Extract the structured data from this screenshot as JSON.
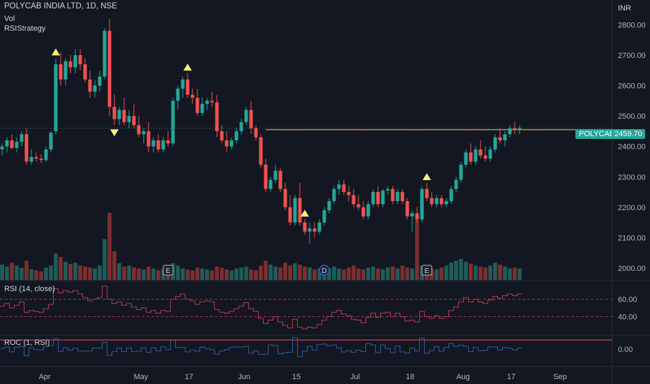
{
  "header": {
    "title": "POLYCAB INDIA LTD, 1D, NSE",
    "vol_label": "Vol",
    "strategy_label": "RSIStrategy",
    "currency": "INR"
  },
  "price_tag": {
    "symbol": "POLYCAB",
    "value": "2459.70"
  },
  "rsi_panel": {
    "label": "RSI (14, close)"
  },
  "roc_panel": {
    "label": "ROC (1, RSI)"
  },
  "colors": {
    "up": "#26a69a",
    "down": "#ef5350",
    "up_volume": "#1f5d5a",
    "down_volume": "#7d2f2f",
    "rsi_line": "#b83a4b",
    "roc_line": "#2962ff",
    "level_line": "#f59e0b",
    "signal_marker": "#fff176"
  },
  "chart_data": {
    "type": "candlestick",
    "title": "POLYCAB INDIA LTD, 1D, NSE",
    "currency": "INR",
    "x_ticks": [
      "Apr",
      "May",
      "17",
      "Jun",
      "15",
      "Jul",
      "18",
      "Aug",
      "17",
      "Sep"
    ],
    "y_ticks": [
      "2800.00",
      "2700.00",
      "2600.00",
      "2500.00",
      "2400.00",
      "2300.00",
      "2200.00",
      "2100.00",
      "2000.00"
    ],
    "ylim": [
      1970,
      2870
    ],
    "last_price": 2459.7,
    "level_line_value": 2455,
    "ohlc": [
      {
        "o": 2390,
        "h": 2410,
        "l": 2370,
        "c": 2400
      },
      {
        "o": 2400,
        "h": 2430,
        "l": 2380,
        "c": 2420
      },
      {
        "o": 2420,
        "h": 2440,
        "l": 2390,
        "c": 2395
      },
      {
        "o": 2395,
        "h": 2430,
        "l": 2380,
        "c": 2415
      },
      {
        "o": 2415,
        "h": 2450,
        "l": 2400,
        "c": 2440
      },
      {
        "o": 2440,
        "h": 2460,
        "l": 2340,
        "c": 2350
      },
      {
        "o": 2350,
        "h": 2390,
        "l": 2340,
        "c": 2365
      },
      {
        "o": 2365,
        "h": 2380,
        "l": 2350,
        "c": 2360
      },
      {
        "o": 2360,
        "h": 2375,
        "l": 2345,
        "c": 2355
      },
      {
        "o": 2355,
        "h": 2400,
        "l": 2350,
        "c": 2390
      },
      {
        "o": 2390,
        "h": 2450,
        "l": 2380,
        "c": 2445
      },
      {
        "o": 2450,
        "h": 2690,
        "l": 2440,
        "c": 2670
      },
      {
        "o": 2670,
        "h": 2710,
        "l": 2600,
        "c": 2620
      },
      {
        "o": 2620,
        "h": 2690,
        "l": 2600,
        "c": 2680
      },
      {
        "o": 2680,
        "h": 2700,
        "l": 2640,
        "c": 2660
      },
      {
        "o": 2660,
        "h": 2720,
        "l": 2640,
        "c": 2700
      },
      {
        "o": 2700,
        "h": 2720,
        "l": 2650,
        "c": 2670
      },
      {
        "o": 2670,
        "h": 2690,
        "l": 2610,
        "c": 2620
      },
      {
        "o": 2620,
        "h": 2650,
        "l": 2560,
        "c": 2580
      },
      {
        "o": 2580,
        "h": 2620,
        "l": 2560,
        "c": 2600
      },
      {
        "o": 2600,
        "h": 2650,
        "l": 2580,
        "c": 2630
      },
      {
        "o": 2630,
        "h": 2790,
        "l": 2620,
        "c": 2780
      },
      {
        "o": 2780,
        "h": 2820,
        "l": 2500,
        "c": 2530
      },
      {
        "o": 2530,
        "h": 2570,
        "l": 2470,
        "c": 2490
      },
      {
        "o": 2490,
        "h": 2530,
        "l": 2470,
        "c": 2520
      },
      {
        "o": 2520,
        "h": 2560,
        "l": 2470,
        "c": 2480
      },
      {
        "o": 2480,
        "h": 2520,
        "l": 2460,
        "c": 2500
      },
      {
        "o": 2500,
        "h": 2540,
        "l": 2460,
        "c": 2470
      },
      {
        "o": 2470,
        "h": 2500,
        "l": 2430,
        "c": 2440
      },
      {
        "o": 2440,
        "h": 2460,
        "l": 2410,
        "c": 2450
      },
      {
        "o": 2450,
        "h": 2480,
        "l": 2380,
        "c": 2400
      },
      {
        "o": 2400,
        "h": 2430,
        "l": 2380,
        "c": 2420
      },
      {
        "o": 2420,
        "h": 2440,
        "l": 2380,
        "c": 2390
      },
      {
        "o": 2390,
        "h": 2430,
        "l": 2380,
        "c": 2420
      },
      {
        "o": 2420,
        "h": 2450,
        "l": 2400,
        "c": 2410
      },
      {
        "o": 2410,
        "h": 2560,
        "l": 2400,
        "c": 2550
      },
      {
        "o": 2550,
        "h": 2600,
        "l": 2520,
        "c": 2590
      },
      {
        "o": 2590,
        "h": 2630,
        "l": 2560,
        "c": 2620
      },
      {
        "o": 2620,
        "h": 2640,
        "l": 2560,
        "c": 2570
      },
      {
        "o": 2570,
        "h": 2590,
        "l": 2540,
        "c": 2560
      },
      {
        "o": 2560,
        "h": 2590,
        "l": 2500,
        "c": 2510
      },
      {
        "o": 2510,
        "h": 2560,
        "l": 2500,
        "c": 2540
      },
      {
        "o": 2540,
        "h": 2560,
        "l": 2520,
        "c": 2550
      },
      {
        "o": 2550,
        "h": 2580,
        "l": 2530,
        "c": 2545
      },
      {
        "o": 2545,
        "h": 2570,
        "l": 2430,
        "c": 2450
      },
      {
        "o": 2450,
        "h": 2470,
        "l": 2410,
        "c": 2420
      },
      {
        "o": 2420,
        "h": 2450,
        "l": 2380,
        "c": 2400
      },
      {
        "o": 2400,
        "h": 2430,
        "l": 2390,
        "c": 2420
      },
      {
        "o": 2420,
        "h": 2460,
        "l": 2410,
        "c": 2450
      },
      {
        "o": 2450,
        "h": 2490,
        "l": 2440,
        "c": 2480
      },
      {
        "o": 2480,
        "h": 2530,
        "l": 2470,
        "c": 2520
      },
      {
        "o": 2520,
        "h": 2550,
        "l": 2440,
        "c": 2460
      },
      {
        "o": 2460,
        "h": 2470,
        "l": 2420,
        "c": 2430
      },
      {
        "o": 2430,
        "h": 2440,
        "l": 2330,
        "c": 2340
      },
      {
        "o": 2340,
        "h": 2360,
        "l": 2250,
        "c": 2260
      },
      {
        "o": 2260,
        "h": 2300,
        "l": 2250,
        "c": 2290
      },
      {
        "o": 2290,
        "h": 2340,
        "l": 2280,
        "c": 2320
      },
      {
        "o": 2320,
        "h": 2330,
        "l": 2250,
        "c": 2260
      },
      {
        "o": 2260,
        "h": 2280,
        "l": 2190,
        "c": 2200
      },
      {
        "o": 2200,
        "h": 2240,
        "l": 2140,
        "c": 2150
      },
      {
        "o": 2150,
        "h": 2240,
        "l": 2140,
        "c": 2230
      },
      {
        "o": 2230,
        "h": 2280,
        "l": 2140,
        "c": 2150
      },
      {
        "o": 2150,
        "h": 2160,
        "l": 2110,
        "c": 2120
      },
      {
        "o": 2120,
        "h": 2150,
        "l": 2080,
        "c": 2130
      },
      {
        "o": 2130,
        "h": 2150,
        "l": 2100,
        "c": 2120
      },
      {
        "o": 2120,
        "h": 2160,
        "l": 2110,
        "c": 2150
      },
      {
        "o": 2150,
        "h": 2200,
        "l": 2140,
        "c": 2190
      },
      {
        "o": 2190,
        "h": 2230,
        "l": 2180,
        "c": 2220
      },
      {
        "o": 2220,
        "h": 2270,
        "l": 2210,
        "c": 2260
      },
      {
        "o": 2260,
        "h": 2290,
        "l": 2240,
        "c": 2275
      },
      {
        "o": 2275,
        "h": 2290,
        "l": 2240,
        "c": 2250
      },
      {
        "o": 2250,
        "h": 2270,
        "l": 2220,
        "c": 2240
      },
      {
        "o": 2240,
        "h": 2260,
        "l": 2200,
        "c": 2210
      },
      {
        "o": 2210,
        "h": 2240,
        "l": 2190,
        "c": 2200
      },
      {
        "o": 2200,
        "h": 2220,
        "l": 2160,
        "c": 2170
      },
      {
        "o": 2170,
        "h": 2220,
        "l": 2160,
        "c": 2210
      },
      {
        "o": 2210,
        "h": 2260,
        "l": 2200,
        "c": 2250
      },
      {
        "o": 2250,
        "h": 2270,
        "l": 2200,
        "c": 2210
      },
      {
        "o": 2210,
        "h": 2260,
        "l": 2200,
        "c": 2255
      },
      {
        "o": 2255,
        "h": 2270,
        "l": 2240,
        "c": 2260
      },
      {
        "o": 2260,
        "h": 2270,
        "l": 2210,
        "c": 2220
      },
      {
        "o": 2220,
        "h": 2260,
        "l": 2210,
        "c": 2250
      },
      {
        "o": 2250,
        "h": 2260,
        "l": 2210,
        "c": 2220
      },
      {
        "o": 2220,
        "h": 2230,
        "l": 2160,
        "c": 2170
      },
      {
        "o": 2170,
        "h": 2190,
        "l": 2120,
        "c": 2180
      },
      {
        "o": 2180,
        "h": 2200,
        "l": 2150,
        "c": 2160
      },
      {
        "o": 2160,
        "h": 2270,
        "l": 2150,
        "c": 2260
      },
      {
        "o": 2260,
        "h": 2280,
        "l": 2220,
        "c": 2230
      },
      {
        "o": 2230,
        "h": 2250,
        "l": 2200,
        "c": 2210
      },
      {
        "o": 2210,
        "h": 2240,
        "l": 2200,
        "c": 2230
      },
      {
        "o": 2230,
        "h": 2240,
        "l": 2200,
        "c": 2210
      },
      {
        "o": 2210,
        "h": 2230,
        "l": 2200,
        "c": 2220
      },
      {
        "o": 2220,
        "h": 2270,
        "l": 2210,
        "c": 2260
      },
      {
        "o": 2260,
        "h": 2300,
        "l": 2250,
        "c": 2290
      },
      {
        "o": 2290,
        "h": 2350,
        "l": 2280,
        "c": 2340
      },
      {
        "o": 2340,
        "h": 2390,
        "l": 2330,
        "c": 2380
      },
      {
        "o": 2380,
        "h": 2410,
        "l": 2340,
        "c": 2350
      },
      {
        "o": 2350,
        "h": 2400,
        "l": 2340,
        "c": 2390
      },
      {
        "o": 2390,
        "h": 2420,
        "l": 2360,
        "c": 2370
      },
      {
        "o": 2370,
        "h": 2400,
        "l": 2350,
        "c": 2360
      },
      {
        "o": 2360,
        "h": 2400,
        "l": 2350,
        "c": 2390
      },
      {
        "o": 2390,
        "h": 2440,
        "l": 2380,
        "c": 2430
      },
      {
        "o": 2430,
        "h": 2460,
        "l": 2410,
        "c": 2420
      },
      {
        "o": 2420,
        "h": 2450,
        "l": 2400,
        "c": 2440
      },
      {
        "o": 2440,
        "h": 2470,
        "l": 2430,
        "c": 2460
      },
      {
        "o": 2460,
        "h": 2480,
        "l": 2440,
        "c": 2455
      },
      {
        "o": 2455,
        "h": 2470,
        "l": 2440,
        "c": 2460
      }
    ],
    "volume": [
      32,
      28,
      36,
      30,
      25,
      40,
      22,
      20,
      18,
      26,
      30,
      55,
      48,
      38,
      33,
      36,
      30,
      28,
      26,
      24,
      30,
      85,
      140,
      60,
      35,
      28,
      30,
      26,
      24,
      22,
      28,
      24,
      20,
      22,
      26,
      35,
      30,
      24,
      22,
      20,
      26,
      24,
      22,
      20,
      28,
      25,
      22,
      20,
      24,
      26,
      28,
      22,
      20,
      30,
      40,
      32,
      28,
      26,
      36,
      30,
      35,
      32,
      28,
      26,
      22,
      24,
      26,
      24,
      28,
      24,
      22,
      26,
      30,
      24,
      22,
      26,
      28,
      24,
      22,
      26,
      28,
      24,
      30,
      26,
      24,
      125,
      30,
      28,
      24,
      22,
      26,
      30,
      36,
      40,
      44,
      38,
      34,
      30,
      28,
      26,
      30,
      36,
      32,
      28,
      24,
      26,
      24
    ],
    "rsi": [
      52,
      55,
      50,
      53,
      57,
      45,
      47,
      46,
      45,
      49,
      54,
      72,
      67,
      70,
      68,
      70,
      66,
      62,
      58,
      60,
      62,
      75,
      60,
      55,
      57,
      53,
      55,
      51,
      48,
      50,
      45,
      47,
      44,
      47,
      46,
      60,
      63,
      66,
      60,
      58,
      54,
      57,
      58,
      57,
      48,
      45,
      44,
      46,
      49,
      52,
      56,
      49,
      46,
      38,
      32,
      36,
      40,
      34,
      30,
      27,
      37,
      28,
      26,
      28,
      27,
      31,
      36,
      40,
      45,
      47,
      43,
      41,
      37,
      36,
      33,
      39,
      44,
      39,
      44,
      45,
      40,
      44,
      40,
      35,
      36,
      34,
      46,
      40,
      38,
      41,
      38,
      40,
      47,
      51,
      57,
      62,
      57,
      60,
      57,
      55,
      59,
      63,
      61,
      64,
      66,
      64,
      66
    ],
    "rsi_levels": [
      60,
      40
    ],
    "rsi_ticks": [
      "60.00",
      "40.00"
    ],
    "roc": [
      2,
      6,
      -9,
      6,
      8,
      -21,
      4,
      -2,
      -2,
      9,
      11,
      33,
      -7,
      4,
      -3,
      3,
      -6,
      -6,
      -6,
      3,
      3,
      21,
      -20,
      -8,
      4,
      -8,
      4,
      -8,
      -6,
      4,
      -10,
      4,
      -6,
      7,
      -2,
      30,
      5,
      5,
      -9,
      -3,
      -7,
      6,
      2,
      -2,
      -16,
      -6,
      -2,
      5,
      7,
      6,
      8,
      -13,
      -6,
      -17,
      -16,
      13,
      11,
      -15,
      -12,
      -10,
      37,
      -24,
      -7,
      8,
      -4,
      15,
      16,
      11,
      13,
      4,
      -9,
      -5,
      -10,
      -3,
      -8,
      18,
      13,
      -11,
      13,
      2,
      -11,
      10,
      -9,
      -13,
      3,
      -6,
      35,
      -13,
      -5,
      8,
      -7,
      5,
      18,
      9,
      12,
      9,
      -8,
      5,
      -5,
      -4,
      7,
      7,
      -3,
      5,
      3,
      -3,
      3
    ],
    "roc_tick": "0.00",
    "signals": {
      "buy": [
        11,
        38,
        62,
        87
      ],
      "sell": [
        23
      ]
    },
    "event_markers": [
      {
        "index": 34,
        "label": "E"
      },
      {
        "index": 66,
        "label": "D"
      },
      {
        "index": 87,
        "label": "E"
      }
    ]
  }
}
